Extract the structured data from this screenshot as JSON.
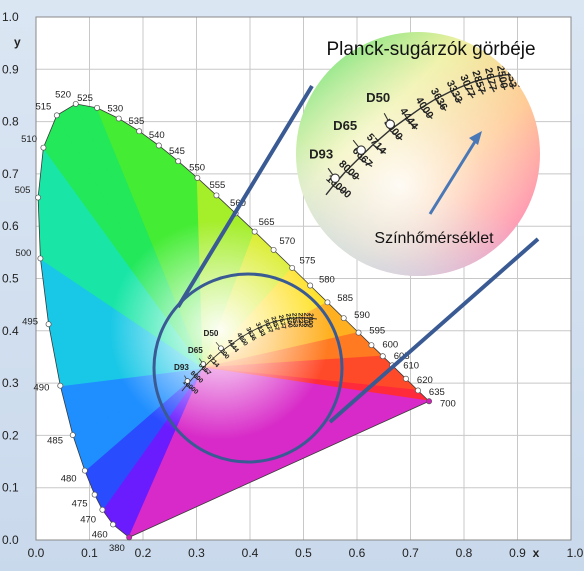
{
  "chart_data": {
    "type": "scatter",
    "title": "Planck-sugárzók görbéje",
    "annotation": "Színhőmérséklet",
    "xlabel": "x",
    "ylabel": "y",
    "xlim": [
      0,
      1.0
    ],
    "ylim": [
      0,
      1.0
    ],
    "x_ticks": [
      "0.0",
      "0.1",
      "0.2",
      "0.3",
      "0.4",
      "0.5",
      "0.6",
      "0.7",
      "0.8",
      "0.9",
      "1.0"
    ],
    "y_ticks": [
      "0.0",
      "0.1",
      "0.2",
      "0.3",
      "0.4",
      "0.5",
      "0.6",
      "0.7",
      "0.8",
      "0.9",
      "1.0"
    ],
    "grid": true,
    "spectral_locus": [
      {
        "label": "380",
        "x": 0.1741,
        "y": 0.005
      },
      {
        "label": "460",
        "x": 0.144,
        "y": 0.0297
      },
      {
        "label": "470",
        "x": 0.1241,
        "y": 0.0578
      },
      {
        "label": "475",
        "x": 0.1096,
        "y": 0.0868
      },
      {
        "label": "480",
        "x": 0.0913,
        "y": 0.1327
      },
      {
        "label": "485",
        "x": 0.0687,
        "y": 0.2007
      },
      {
        "label": "490",
        "x": 0.0454,
        "y": 0.295
      },
      {
        "label": "495",
        "x": 0.0235,
        "y": 0.4127
      },
      {
        "label": "500",
        "x": 0.0082,
        "y": 0.5384
      },
      {
        "label": "505",
        "x": 0.0039,
        "y": 0.6548
      },
      {
        "label": "510",
        "x": 0.0139,
        "y": 0.7502
      },
      {
        "label": "515",
        "x": 0.0389,
        "y": 0.812
      },
      {
        "label": "520",
        "x": 0.0743,
        "y": 0.8338
      },
      {
        "label": "525",
        "x": 0.1142,
        "y": 0.8262
      },
      {
        "label": "530",
        "x": 0.1547,
        "y": 0.8059
      },
      {
        "label": "535",
        "x": 0.1929,
        "y": 0.7816
      },
      {
        "label": "540",
        "x": 0.2296,
        "y": 0.7543
      },
      {
        "label": "545",
        "x": 0.2658,
        "y": 0.7243
      },
      {
        "label": "550",
        "x": 0.3016,
        "y": 0.6923
      },
      {
        "label": "555",
        "x": 0.3373,
        "y": 0.6589
      },
      {
        "label": "560",
        "x": 0.3731,
        "y": 0.6245
      },
      {
        "label": "565",
        "x": 0.4087,
        "y": 0.5896
      },
      {
        "label": "570",
        "x": 0.4441,
        "y": 0.5547
      },
      {
        "label": "575",
        "x": 0.4788,
        "y": 0.5202
      },
      {
        "label": "580",
        "x": 0.5125,
        "y": 0.4866
      },
      {
        "label": "585",
        "x": 0.5448,
        "y": 0.4544
      },
      {
        "label": "590",
        "x": 0.5752,
        "y": 0.4242
      },
      {
        "label": "595",
        "x": 0.6029,
        "y": 0.3965
      },
      {
        "label": "600",
        "x": 0.627,
        "y": 0.3725
      },
      {
        "label": "605",
        "x": 0.6482,
        "y": 0.3514
      },
      {
        "label": "610",
        "x": 0.6658,
        "y": 0.334
      },
      {
        "label": "620",
        "x": 0.6915,
        "y": 0.3083
      },
      {
        "label": "635",
        "x": 0.714,
        "y": 0.2859
      },
      {
        "label": "700",
        "x": 0.7347,
        "y": 0.2653
      }
    ],
    "planckian_locus": [
      {
        "label": "10000",
        "x": 0.2807,
        "y": 0.2883
      },
      {
        "label": "8000",
        "x": 0.295,
        "y": 0.3048
      },
      {
        "label": "6667",
        "x": 0.3101,
        "y": 0.3197
      },
      {
        "label": "5714",
        "x": 0.326,
        "y": 0.3351
      },
      {
        "label": "5000",
        "x": 0.3451,
        "y": 0.3516
      },
      {
        "label": "4444",
        "x": 0.3629,
        "y": 0.3644
      },
      {
        "label": "4000",
        "x": 0.3805,
        "y": 0.3768
      },
      {
        "label": "3636",
        "x": 0.397,
        "y": 0.3869
      },
      {
        "label": "3333",
        "x": 0.4146,
        "y": 0.3958
      },
      {
        "label": "3077",
        "x": 0.4295,
        "y": 0.4024
      },
      {
        "label": "2857",
        "x": 0.4424,
        "y": 0.4074
      },
      {
        "label": "2677",
        "x": 0.456,
        "y": 0.4107
      },
      {
        "label": "2500",
        "x": 0.469,
        "y": 0.4136
      },
      {
        "label": "2353",
        "x": 0.48,
        "y": 0.4149
      },
      {
        "label": "2222",
        "x": 0.491,
        "y": 0.4156
      },
      {
        "label": "2105",
        "x": 0.501,
        "y": 0.4155
      },
      {
        "label": "2000",
        "x": 0.51,
        "y": 0.415
      }
    ],
    "illuminants": [
      {
        "label": "D93",
        "x": 0.2831,
        "y": 0.2971
      },
      {
        "label": "D65",
        "x": 0.3127,
        "y": 0.329
      },
      {
        "label": "D50",
        "x": 0.3457,
        "y": 0.3585
      }
    ]
  }
}
